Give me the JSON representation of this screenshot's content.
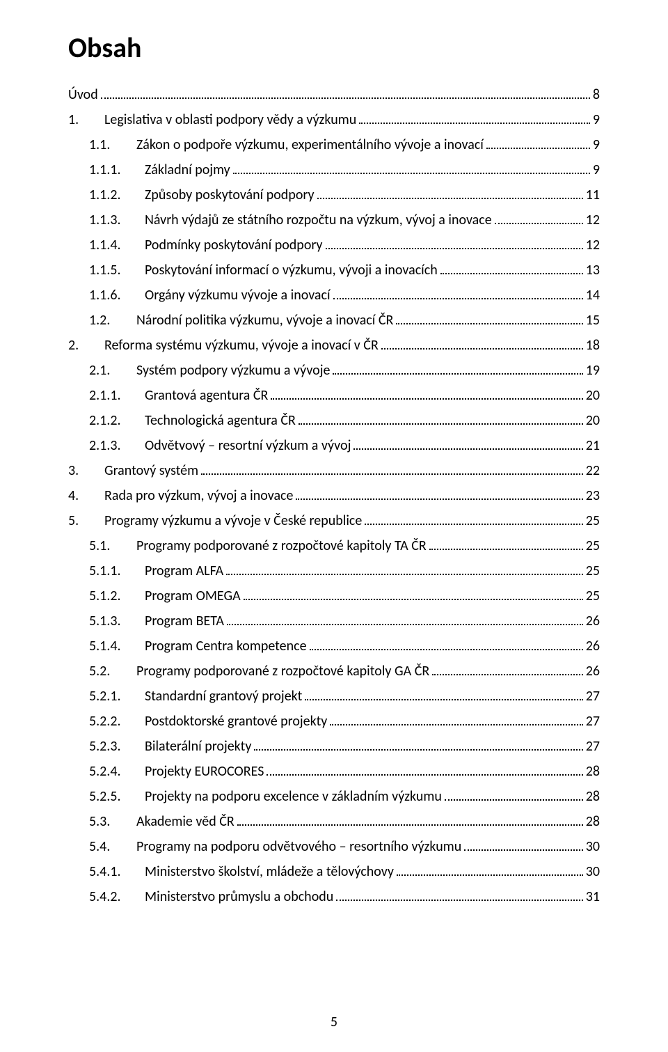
{
  "title": "Obsah",
  "page_number": "5",
  "entries": [
    {
      "level": 0,
      "num": "",
      "text": "Úvod",
      "page": "8"
    },
    {
      "level": 1,
      "num": "1.",
      "text": "Legislativa v oblasti podpory vědy a výzkumu",
      "page": "9"
    },
    {
      "level": 2,
      "num": "1.1.",
      "text": "Zákon o podpoře výzkumu, experimentálního vývoje a inovací",
      "page": "9"
    },
    {
      "level": 3,
      "num": "1.1.1.",
      "text": "Základní pojmy",
      "page": "9"
    },
    {
      "level": 3,
      "num": "1.1.2.",
      "text": "Způsoby poskytování podpory",
      "page": "11"
    },
    {
      "level": 3,
      "num": "1.1.3.",
      "text": "Návrh výdajů ze státního rozpočtu na výzkum, vývoj a inovace",
      "page": "12"
    },
    {
      "level": 3,
      "num": "1.1.4.",
      "text": "Podmínky poskytování podpory",
      "page": "12"
    },
    {
      "level": 3,
      "num": "1.1.5.",
      "text": "Poskytování informací o výzkumu, vývoji a inovacích",
      "page": "13"
    },
    {
      "level": 3,
      "num": "1.1.6.",
      "text": "Orgány výzkumu vývoje a inovací",
      "page": "14"
    },
    {
      "level": 2,
      "num": "1.2.",
      "text": "Národní politika výzkumu, vývoje a inovací ČR",
      "page": "15"
    },
    {
      "level": 1,
      "num": "2.",
      "text": "Reforma systému výzkumu, vývoje a inovací v ČR",
      "page": "18"
    },
    {
      "level": 2,
      "num": "2.1.",
      "text": "Systém podpory výzkumu a vývoje",
      "page": "19"
    },
    {
      "level": 3,
      "num": "2.1.1.",
      "text": "Grantová agentura ČR",
      "page": "20"
    },
    {
      "level": 3,
      "num": "2.1.2.",
      "text": "Technologická agentura ČR",
      "page": "20"
    },
    {
      "level": 3,
      "num": "2.1.3.",
      "text": "Odvětvový – resortní výzkum a vývoj",
      "page": "21"
    },
    {
      "level": 1,
      "num": "3.",
      "text": "Grantový systém",
      "page": "22"
    },
    {
      "level": 1,
      "num": "4.",
      "text": "Rada pro výzkum, vývoj a inovace",
      "page": "23"
    },
    {
      "level": 1,
      "num": "5.",
      "text": "Programy výzkumu a vývoje v České republice",
      "page": "25"
    },
    {
      "level": 2,
      "num": "5.1.",
      "text": "Programy podporované z rozpočtové kapitoly TA ČR",
      "page": "25"
    },
    {
      "level": 3,
      "num": "5.1.1.",
      "text": "Program ALFA",
      "page": "25"
    },
    {
      "level": 3,
      "num": "5.1.2.",
      "text": "Program OMEGA",
      "page": "25"
    },
    {
      "level": 3,
      "num": "5.1.3.",
      "text": "Program BETA",
      "page": "26"
    },
    {
      "level": 3,
      "num": "5.1.4.",
      "text": "Program Centra kompetence",
      "page": "26"
    },
    {
      "level": 2,
      "num": "5.2.",
      "text": "Programy podporované z rozpočtové kapitoly GA ČR",
      "page": "26"
    },
    {
      "level": 3,
      "num": "5.2.1.",
      "text": "Standardní grantový projekt",
      "page": "27"
    },
    {
      "level": 3,
      "num": "5.2.2.",
      "text": "Postdoktorské grantové projekty",
      "page": "27"
    },
    {
      "level": 3,
      "num": "5.2.3.",
      "text": "Bilaterální projekty",
      "page": "27"
    },
    {
      "level": 3,
      "num": "5.2.4.",
      "text": "Projekty EUROCORES",
      "page": "28"
    },
    {
      "level": 3,
      "num": "5.2.5.",
      "text": "Projekty na podporu excelence v základním výzkumu",
      "page": "28"
    },
    {
      "level": 2,
      "num": "5.3.",
      "text": "Akademie věd ČR",
      "page": "28"
    },
    {
      "level": 2,
      "num": "5.4.",
      "text": "Programy na podporu odvětvového – resortního výzkumu",
      "page": "30"
    },
    {
      "level": 3,
      "num": "5.4.1.",
      "text": "Ministerstvo školství, mládeže a tělovýchovy",
      "page": "30"
    },
    {
      "level": 3,
      "num": "5.4.2.",
      "text": "Ministerstvo průmyslu a obchodu",
      "page": "31"
    }
  ]
}
